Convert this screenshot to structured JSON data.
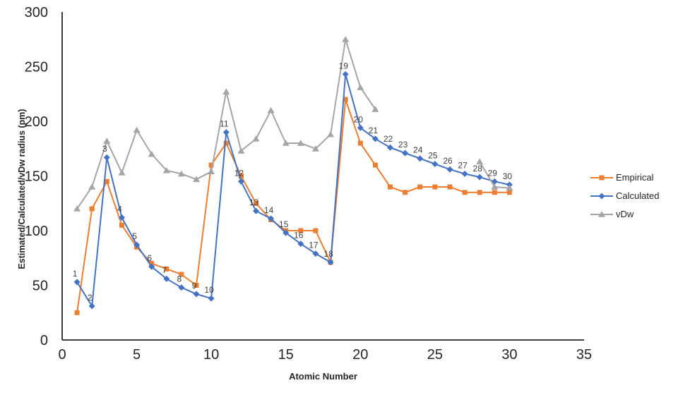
{
  "chart_data": {
    "type": "line",
    "title": "",
    "xlabel": "Atomic Number",
    "ylabel": "Estimated/Calculated/vDw radius (pm)",
    "xlim": [
      0,
      35
    ],
    "ylim": [
      0,
      300
    ],
    "xticks": [
      0,
      5,
      10,
      15,
      20,
      25,
      30,
      35
    ],
    "yticks": [
      0,
      50,
      100,
      150,
      200,
      250,
      300
    ],
    "grid": false,
    "legend_position": "right",
    "axis_color": "#262626",
    "tick_label_color": "#262626",
    "point_label_color": "#404040",
    "x": [
      1,
      2,
      3,
      4,
      5,
      6,
      7,
      8,
      9,
      10,
      11,
      12,
      13,
      14,
      15,
      16,
      17,
      18,
      19,
      20,
      21,
      22,
      23,
      24,
      25,
      26,
      27,
      28,
      29,
      30
    ],
    "series": [
      {
        "name": "Empirical",
        "color": "#ED7D31",
        "marker": "square",
        "values": [
          25,
          120,
          145,
          105,
          85,
          70,
          65,
          60,
          50,
          160,
          180,
          150,
          125,
          110,
          100,
          100,
          100,
          71,
          220,
          180,
          160,
          140,
          135,
          140,
          140,
          140,
          135,
          135,
          135,
          135
        ]
      },
      {
        "name": "Calculated",
        "color": "#4472C4",
        "marker": "diamond",
        "values": [
          53,
          31,
          167,
          112,
          87,
          67,
          56,
          48,
          42,
          38,
          190,
          145,
          118,
          111,
          98,
          88,
          79,
          71,
          243,
          194,
          184,
          176,
          171,
          166,
          161,
          156,
          152,
          149,
          145,
          142
        ],
        "point_labels": [
          "1",
          "2",
          "3",
          "4",
          "5",
          "6",
          "7",
          "8",
          "9",
          "10",
          "11",
          "12",
          "13",
          "14",
          "15",
          "16",
          "17",
          "18",
          "19",
          "20",
          "21",
          "22",
          "23",
          "24",
          "25",
          "26",
          "27",
          "28",
          "29",
          "30"
        ]
      },
      {
        "name": "vDw",
        "color": "#A5A5A5",
        "marker": "triangle",
        "values": [
          120,
          140,
          182,
          153,
          192,
          170,
          155,
          152,
          147,
          154,
          227,
          173,
          184,
          210,
          180,
          180,
          175,
          188,
          275,
          231,
          211,
          null,
          null,
          null,
          null,
          null,
          null,
          163,
          140,
          139
        ]
      }
    ]
  }
}
